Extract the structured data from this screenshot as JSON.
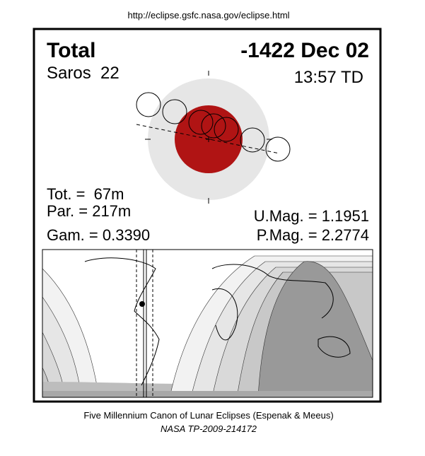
{
  "header": {
    "url": "http://eclipse.gsfc.nasa.gov/eclipse.html"
  },
  "panel": {
    "type": "Total",
    "date": "-1422 Dec 02",
    "saros": "Saros  22",
    "time": "13:57 TD"
  },
  "stats": {
    "tot": "Tot. =  67m",
    "par": "Par. = 217m",
    "gam": "Gam. = 0.3390",
    "umag": "U.Mag. = 1.1951",
    "pmag": "P.Mag. = 2.2774"
  },
  "footer": {
    "line1": "Five Millennium Canon of Lunar Eclipses (Espenak & Meeus)",
    "line2": "NASA TP-2009-214172"
  }
}
